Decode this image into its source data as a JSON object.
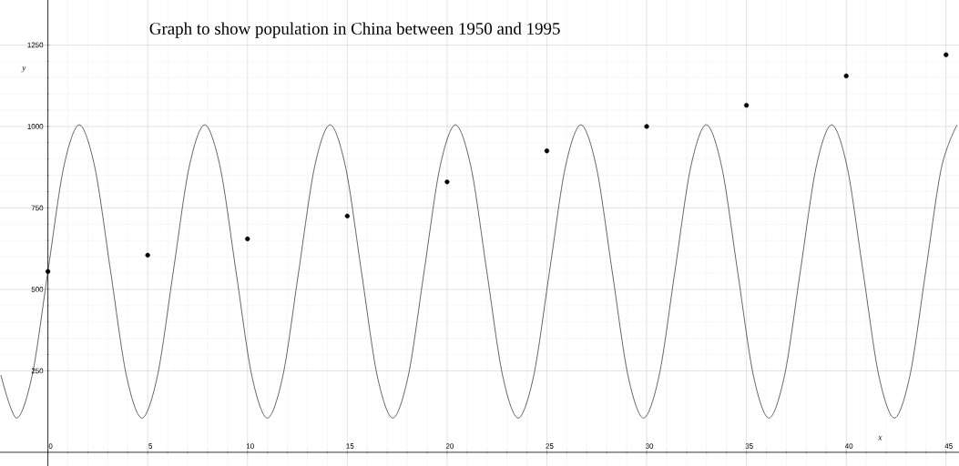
{
  "chart_data": {
    "type": "scatter",
    "title": "Graph to show population in China between 1950 and 1995",
    "xlabel": "x",
    "ylabel": "y",
    "xlim": [
      -2.4,
      45.65
    ],
    "ylim": [
      -42,
      1388
    ],
    "xticks": [
      0,
      5,
      10,
      15,
      20,
      25,
      30,
      35,
      40,
      45
    ],
    "yticks": [
      250,
      500,
      750,
      1000,
      1250
    ],
    "grid": true,
    "marker": "circle",
    "series": [
      {
        "color": "#000000",
        "x": [
          0,
          5,
          10,
          15,
          20,
          25,
          30,
          35,
          40,
          45
        ],
        "values": [
          555,
          605,
          655,
          725,
          830,
          925,
          1000,
          1065,
          1155,
          1220
        ]
      },
      {
        "type": "line",
        "color": "#000000",
        "marker": "none",
        "x": [
          -2.356,
          -1.571,
          -0.785,
          0,
          0.785,
          1.571,
          2.356,
          3.142,
          3.927,
          4.712,
          5.498,
          6.283,
          7.069,
          7.854,
          8.639,
          9.425,
          10.21,
          10.996,
          11.781,
          12.566,
          13.352,
          14.137,
          14.923,
          15.708,
          16.493,
          17.279,
          18.064,
          18.85,
          19.635,
          20.42,
          21.206,
          21.991,
          22.777,
          23.562,
          24.347,
          25.133,
          25.918,
          26.704,
          27.489,
          28.274,
          29.06,
          29.845,
          30.631,
          31.416,
          32.201,
          32.987,
          33.772,
          34.558,
          35.343,
          36.128,
          36.914,
          37.699,
          38.485,
          39.27,
          40.055,
          40.841,
          41.626,
          42.412,
          43.197,
          43.982,
          44.768,
          45.553
        ],
        "values": [
          237,
          105,
          237,
          555,
          873,
          1005,
          873,
          555,
          237,
          105,
          237,
          555,
          873,
          1005,
          873,
          555,
          237,
          105,
          237,
          555,
          873,
          1005,
          873,
          555,
          237,
          105,
          237,
          555,
          873,
          1005,
          873,
          555,
          237,
          105,
          237,
          555,
          873,
          1005,
          873,
          555,
          237,
          105,
          237,
          555,
          873,
          1005,
          873,
          555,
          237,
          105,
          237,
          555,
          873,
          1005,
          873,
          555,
          237,
          105,
          237,
          555,
          873,
          1005
        ]
      }
    ]
  }
}
